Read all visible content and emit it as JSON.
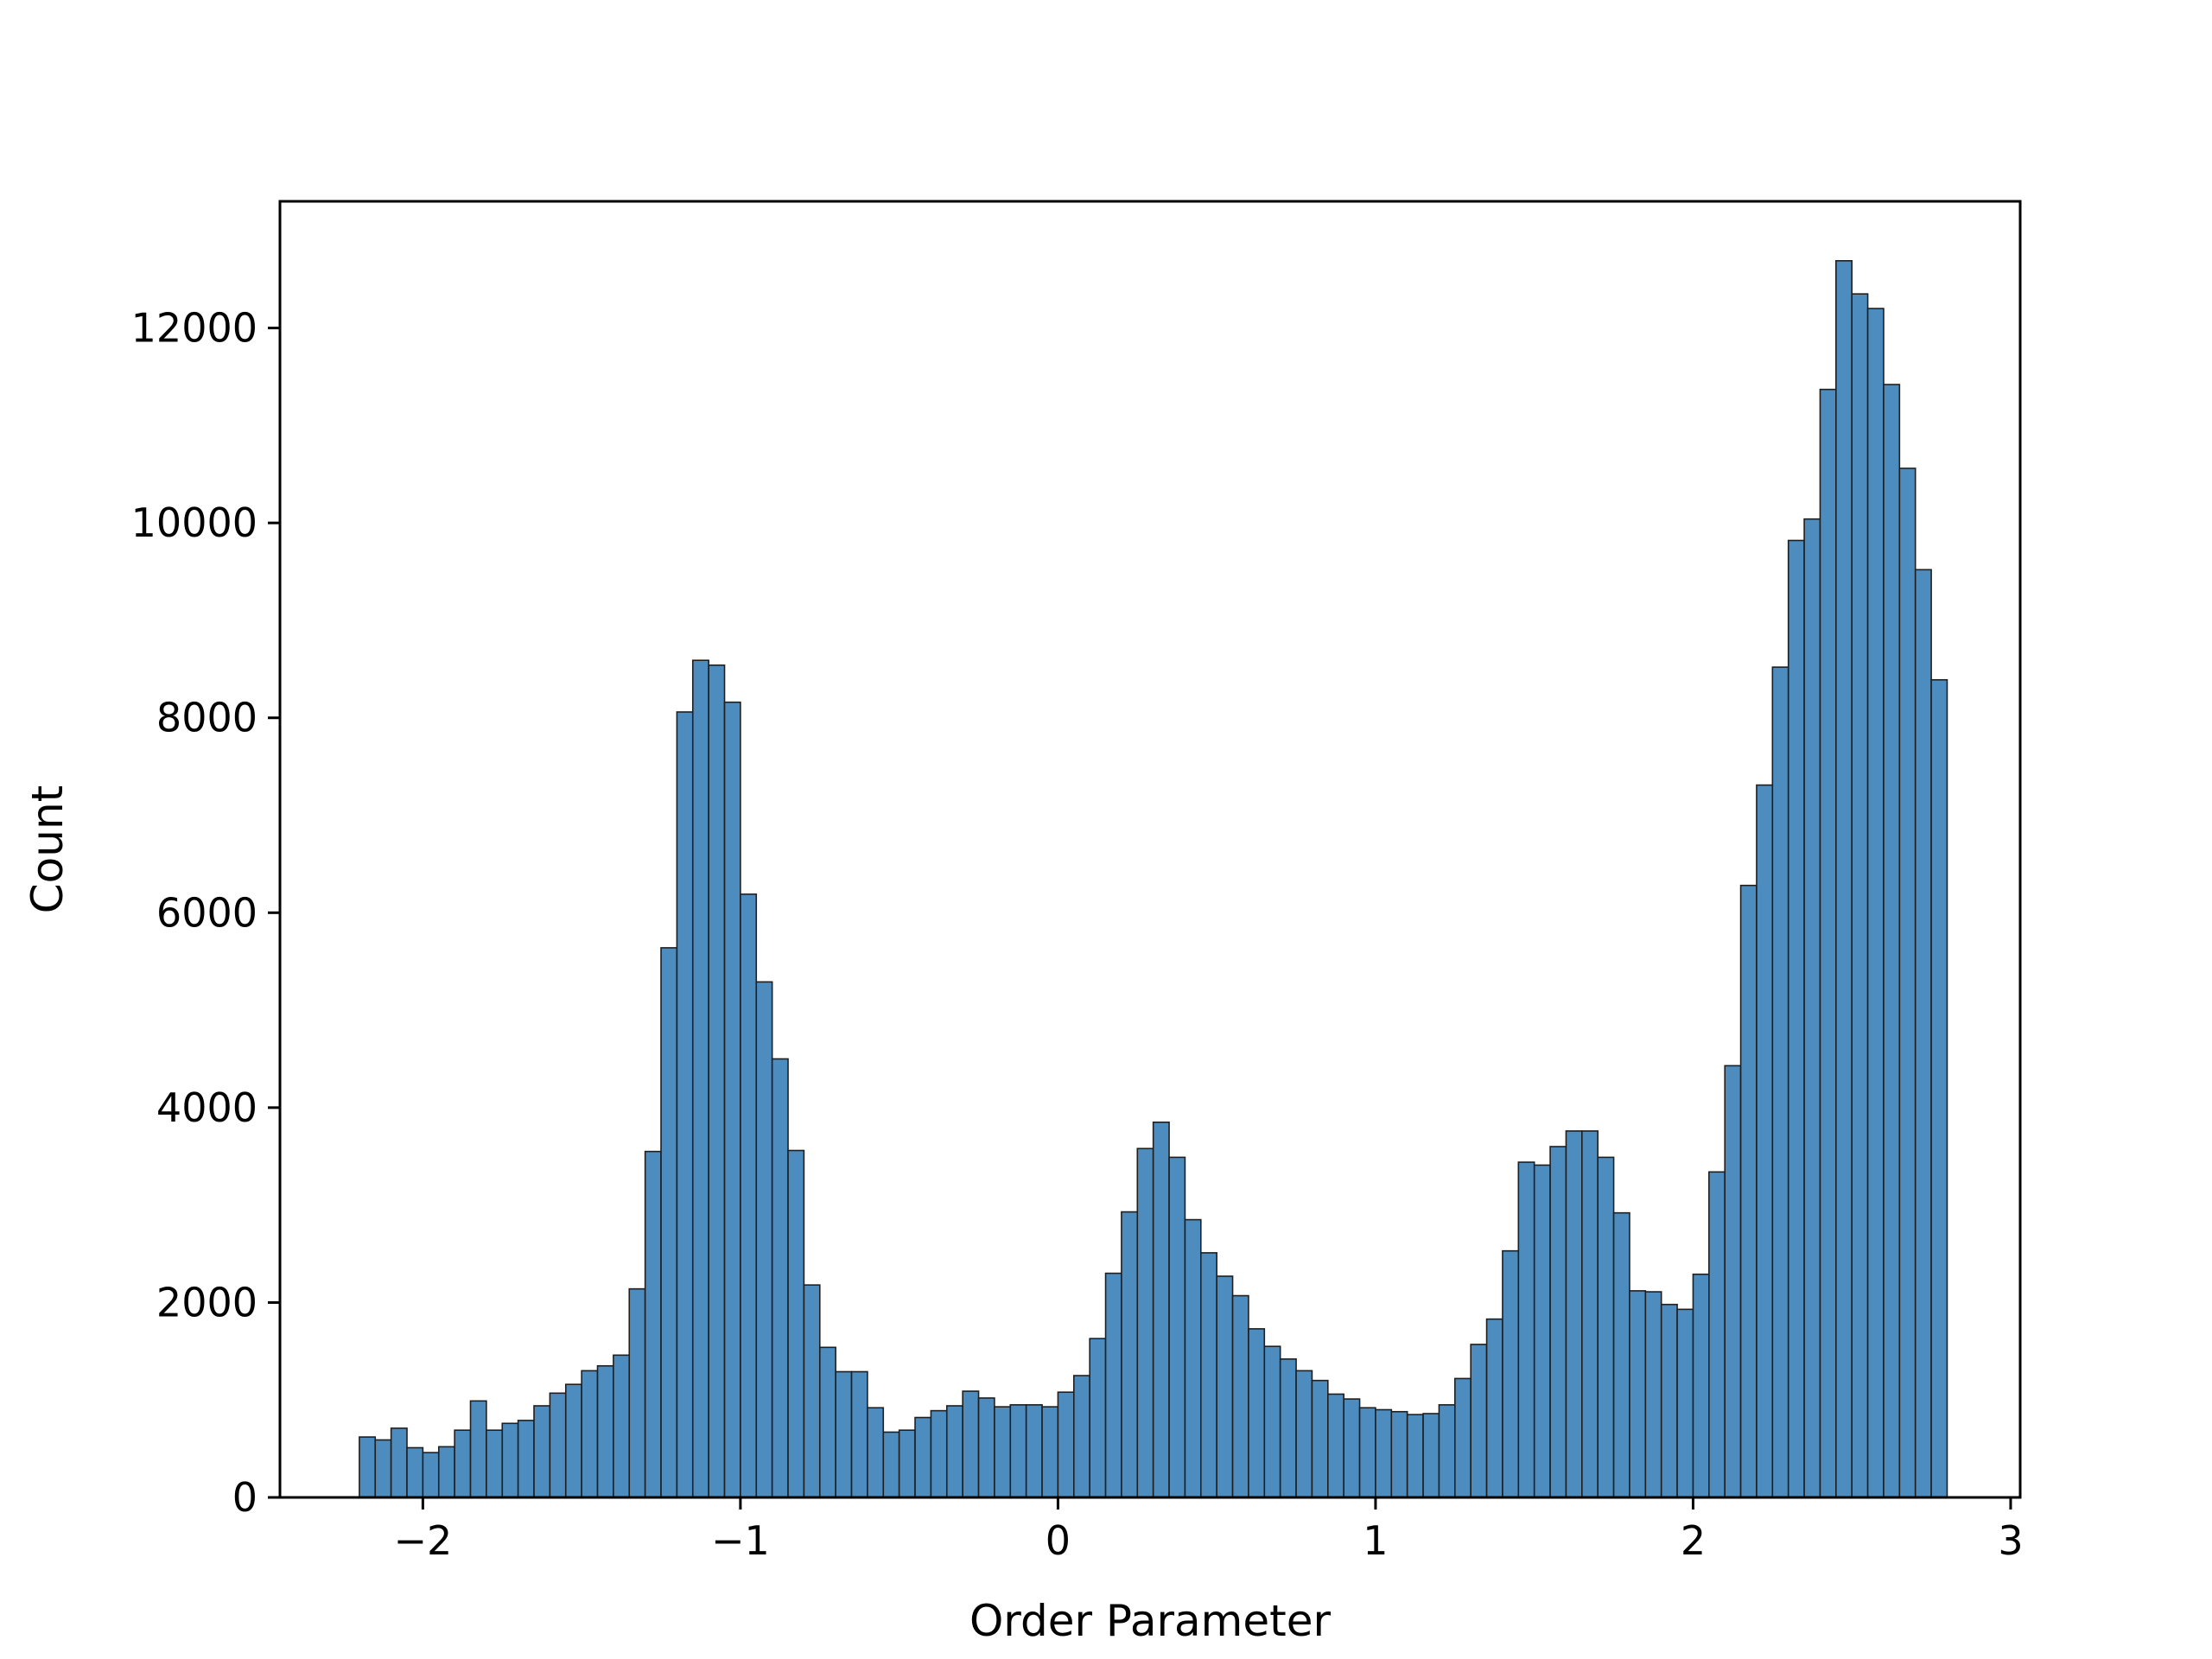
{
  "chart_data": {
    "type": "bar",
    "title": "",
    "xlabel": "Order Parameter",
    "ylabel": "Count",
    "xlim": [
      -2.45,
      3.03
    ],
    "ylim": [
      0,
      13300
    ],
    "bin_start": -2.2,
    "bin_width": 0.05,
    "x_ticks": [
      -2,
      -1,
      0,
      1,
      2,
      3
    ],
    "x_tick_labels": [
      "−2",
      "−1",
      "0",
      "1",
      "2",
      "3"
    ],
    "y_ticks": [
      0,
      2000,
      4000,
      6000,
      8000,
      10000,
      12000
    ],
    "y_tick_labels": [
      "0",
      "2000",
      "4000",
      "6000",
      "8000",
      "10000",
      "12000"
    ],
    "grid": false,
    "legend": "none",
    "bar_color": "#4c8cbf",
    "edge_color": "#1f1f1f",
    "values": [
      620,
      590,
      710,
      510,
      460,
      520,
      690,
      990,
      690,
      760,
      790,
      940,
      1070,
      1160,
      1300,
      1350,
      1460,
      2140,
      3550,
      5640,
      8060,
      8590,
      8540,
      8160,
      6190,
      5290,
      4500,
      3560,
      2180,
      1540,
      1290,
      1290,
      920,
      670,
      690,
      820,
      890,
      940,
      1090,
      1020,
      930,
      950,
      950,
      930,
      1080,
      1250,
      1630,
      2300,
      2930,
      3580,
      3850,
      3490,
      2850,
      2510,
      2270,
      2070,
      1730,
      1550,
      1420,
      1300,
      1200,
      1060,
      1010,
      920,
      900,
      880,
      850,
      860,
      950,
      1220,
      1570,
      1830,
      2530,
      3440,
      3410,
      3600,
      3760,
      3760,
      3490,
      2920,
      2120,
      2110,
      1980,
      1930,
      2290,
      3340,
      4430,
      6280,
      7310,
      8520,
      9820,
      10040,
      11370,
      12690,
      12350,
      12200,
      11420,
      10560,
      9520,
      8390
    ]
  }
}
